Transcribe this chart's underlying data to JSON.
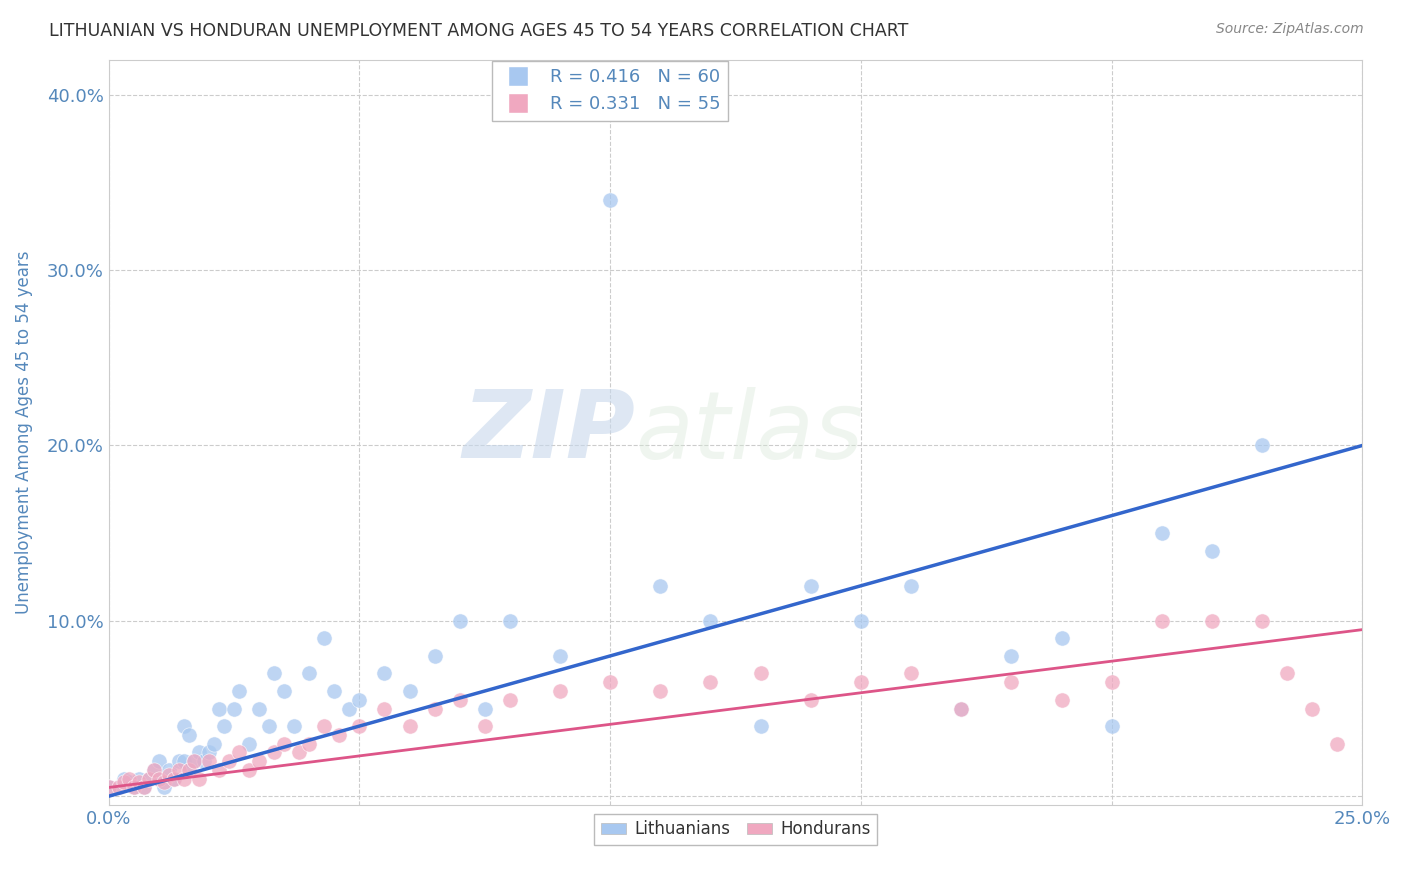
{
  "title": "LITHUANIAN VS HONDURAN UNEMPLOYMENT AMONG AGES 45 TO 54 YEARS CORRELATION CHART",
  "source": "Source: ZipAtlas.com",
  "ylabel": "Unemployment Among Ages 45 to 54 years",
  "xlim": [
    0.0,
    0.25
  ],
  "ylim": [
    -0.005,
    0.42
  ],
  "xticks": [
    0.0,
    0.05,
    0.1,
    0.15,
    0.2,
    0.25
  ],
  "xticklabels": [
    "0.0%",
    "",
    "",
    "",
    "",
    "25.0%"
  ],
  "yticks": [
    0.0,
    0.1,
    0.2,
    0.3,
    0.4
  ],
  "yticklabels": [
    "",
    "10.0%",
    "20.0%",
    "30.0%",
    "40.0%"
  ],
  "grid_color": "#cccccc",
  "background_color": "#ffffff",
  "watermark_zip": "ZIP",
  "watermark_atlas": "atlas",
  "legend_R_lith": "R = 0.416",
  "legend_N_lith": "N = 60",
  "legend_R_hond": "R = 0.331",
  "legend_N_hond": "N = 55",
  "lith_color": "#a8c8f0",
  "hond_color": "#f0a8c0",
  "lith_line_color": "#3366cc",
  "hond_line_color": "#dd5588",
  "title_color": "#333333",
  "axis_label_color": "#5588bb",
  "tick_color": "#5588bb",
  "lith_scatter_x": [
    0.0,
    0.002,
    0.003,
    0.004,
    0.005,
    0.006,
    0.007,
    0.008,
    0.009,
    0.01,
    0.01,
    0.011,
    0.012,
    0.013,
    0.014,
    0.015,
    0.015,
    0.016,
    0.016,
    0.017,
    0.018,
    0.019,
    0.02,
    0.021,
    0.022,
    0.023,
    0.025,
    0.026,
    0.028,
    0.03,
    0.032,
    0.033,
    0.035,
    0.037,
    0.04,
    0.043,
    0.045,
    0.048,
    0.05,
    0.055,
    0.06,
    0.065,
    0.07,
    0.075,
    0.08,
    0.09,
    0.1,
    0.11,
    0.12,
    0.13,
    0.14,
    0.15,
    0.16,
    0.17,
    0.18,
    0.19,
    0.2,
    0.21,
    0.22,
    0.23
  ],
  "lith_scatter_y": [
    0.005,
    0.005,
    0.01,
    0.008,
    0.005,
    0.01,
    0.005,
    0.01,
    0.015,
    0.01,
    0.02,
    0.005,
    0.015,
    0.01,
    0.02,
    0.02,
    0.04,
    0.015,
    0.035,
    0.02,
    0.025,
    0.02,
    0.025,
    0.03,
    0.05,
    0.04,
    0.05,
    0.06,
    0.03,
    0.05,
    0.04,
    0.07,
    0.06,
    0.04,
    0.07,
    0.09,
    0.06,
    0.05,
    0.055,
    0.07,
    0.06,
    0.08,
    0.1,
    0.05,
    0.1,
    0.08,
    0.34,
    0.12,
    0.1,
    0.04,
    0.12,
    0.1,
    0.12,
    0.05,
    0.08,
    0.09,
    0.04,
    0.15,
    0.14,
    0.2
  ],
  "hond_scatter_x": [
    0.0,
    0.002,
    0.003,
    0.004,
    0.005,
    0.006,
    0.007,
    0.008,
    0.009,
    0.01,
    0.011,
    0.012,
    0.013,
    0.014,
    0.015,
    0.016,
    0.017,
    0.018,
    0.02,
    0.022,
    0.024,
    0.026,
    0.028,
    0.03,
    0.033,
    0.035,
    0.038,
    0.04,
    0.043,
    0.046,
    0.05,
    0.055,
    0.06,
    0.065,
    0.07,
    0.075,
    0.08,
    0.09,
    0.1,
    0.11,
    0.12,
    0.13,
    0.14,
    0.15,
    0.16,
    0.17,
    0.18,
    0.19,
    0.2,
    0.21,
    0.22,
    0.23,
    0.235,
    0.24,
    0.245
  ],
  "hond_scatter_y": [
    0.005,
    0.005,
    0.008,
    0.01,
    0.005,
    0.008,
    0.005,
    0.01,
    0.015,
    0.01,
    0.008,
    0.012,
    0.01,
    0.015,
    0.01,
    0.015,
    0.02,
    0.01,
    0.02,
    0.015,
    0.02,
    0.025,
    0.015,
    0.02,
    0.025,
    0.03,
    0.025,
    0.03,
    0.04,
    0.035,
    0.04,
    0.05,
    0.04,
    0.05,
    0.055,
    0.04,
    0.055,
    0.06,
    0.065,
    0.06,
    0.065,
    0.07,
    0.055,
    0.065,
    0.07,
    0.05,
    0.065,
    0.055,
    0.065,
    0.1,
    0.1,
    0.1,
    0.07,
    0.05,
    0.03
  ],
  "lith_trend_x": [
    0.0,
    0.25
  ],
  "lith_trend_y": [
    0.0,
    0.2
  ],
  "hond_trend_x": [
    0.0,
    0.25
  ],
  "hond_trend_y": [
    0.005,
    0.095
  ]
}
